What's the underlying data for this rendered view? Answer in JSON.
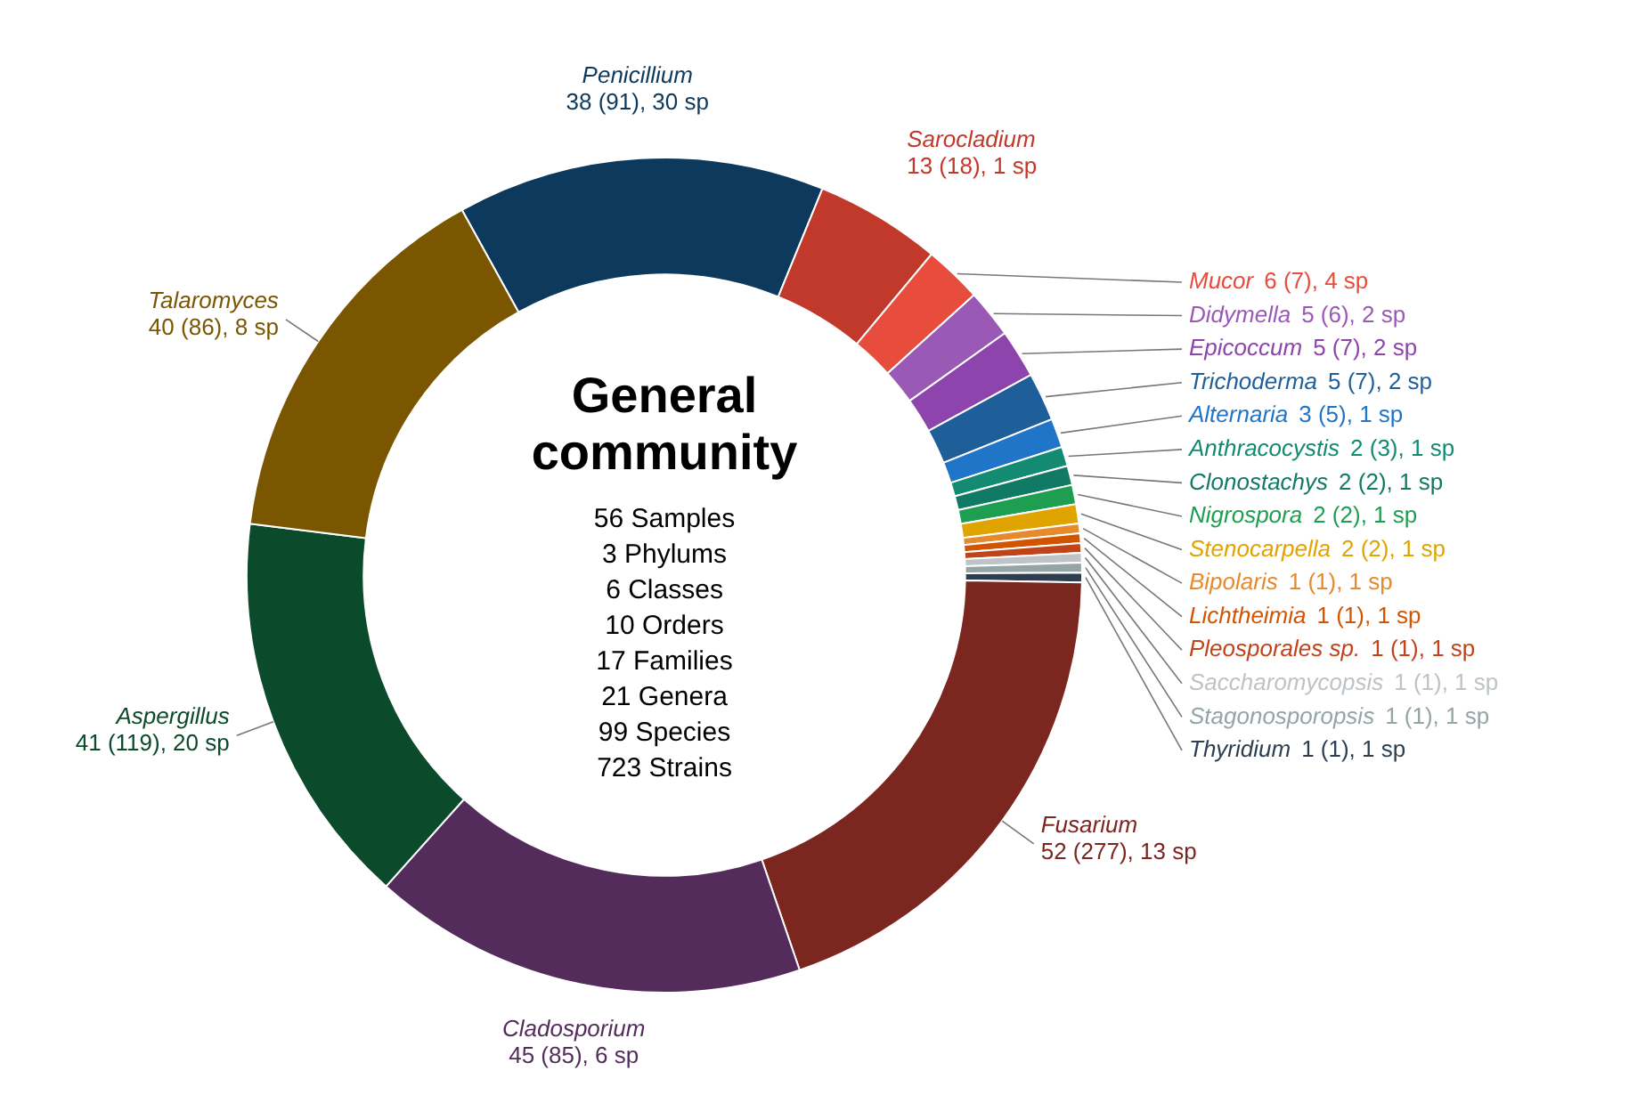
{
  "chart_data": {
    "type": "donut",
    "title": "General community",
    "annotations": [
      "56 Samples",
      "3 Phylums",
      "6 Classes",
      "10 Orders",
      "17 Families",
      "21 Genera",
      "99 Species",
      "723 Strains"
    ],
    "categories": [
      "Penicillium",
      "Sarocladium",
      "Mucor",
      "Didymella",
      "Epicoccum",
      "Trichoderma",
      "Alternaria",
      "Anthracocystis",
      "Clonostachys",
      "Nigrospora",
      "Stenocarpella",
      "Bipolaris",
      "Lichtheimia",
      "Pleosporales sp.",
      "Saccharomycopsis",
      "Stagonosporopsis",
      "Thyridium",
      "Fusarium",
      "Cladosporium",
      "Aspergillus",
      "Talaromyces"
    ],
    "values": [
      38,
      13,
      6,
      5,
      5,
      5,
      3,
      2,
      2,
      2,
      2,
      1,
      1,
      1,
      1,
      1,
      1,
      52,
      45,
      41,
      40
    ],
    "value_labels": [
      "38 (91), 30 sp",
      "13 (18), 1 sp",
      "6 (7), 4 sp",
      "5 (6), 2 sp",
      "5 (7), 2 sp",
      "5 (7), 2 sp",
      "3 (5), 1 sp",
      "2 (3), 1 sp",
      "2 (2), 1 sp",
      "2 (2), 1 sp",
      "2 (2), 1 sp",
      "1 (1), 1 sp",
      "1 (1), 1 sp",
      "1 (1), 1 sp",
      "1 (1), 1 sp",
      "1 (1), 1 sp",
      "1 (1), 1 sp",
      "52 (277), 13 sp",
      "45 (85), 6 sp",
      "41 (119), 20 sp",
      "40 (86), 8 sp"
    ],
    "colors": [
      "#0d3a5c",
      "#c0392b",
      "#e74c3c",
      "#9b59b6",
      "#8e44ad",
      "#1f5f99",
      "#2175c8",
      "#138a72",
      "#117a65",
      "#1e9e50",
      "#e0a400",
      "#e68a2e",
      "#d35400",
      "#c0441a",
      "#bdc3c7",
      "#95a5a6",
      "#2c3e50",
      "#7b261f",
      "#542c5c",
      "#0b4a2b",
      "#7a5600"
    ],
    "legend": false
  }
}
